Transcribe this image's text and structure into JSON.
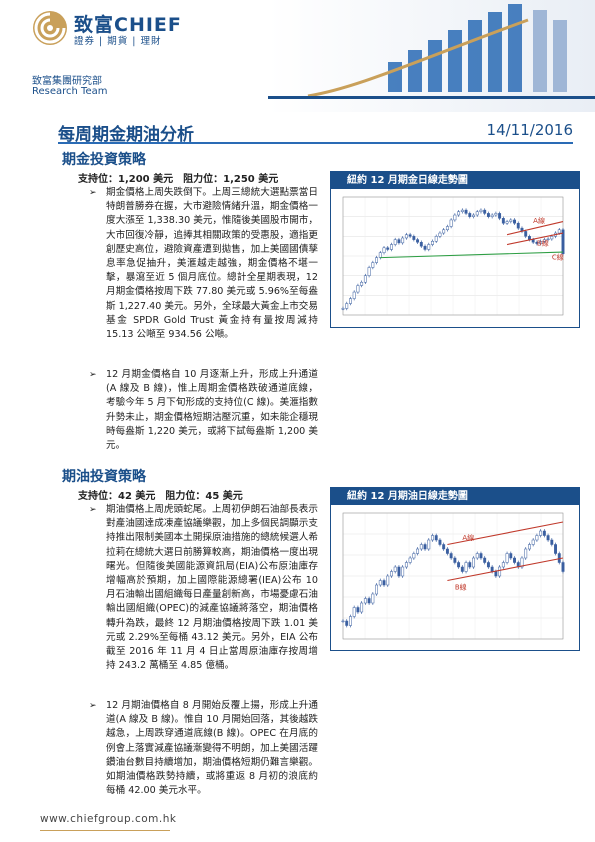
{
  "header": {
    "brand_name": "致富CHIEF",
    "brand_tagline": "證券 | 期貨 | 理財",
    "dept_cn": "致富集團研究部",
    "dept_en": "Research Team",
    "accent": "#1b4f8a",
    "gold": "#c9a05a"
  },
  "report": {
    "title": "每周期金期油分析",
    "date": "14/11/2016"
  },
  "gold_section": {
    "heading": "期金投資策略",
    "support_resistance": "支持位：1,200 美元　阻力位：1,250 美元",
    "bullets": [
      "期金價格上周失跌倒下。上周三總統大選點票當日特朗普勝券在握，大市避險情緒升溫，期金價格一度大漲至 1,338.30 美元，惟隨後美國股市開市，大市回復冷靜，追捧其相關政策的受惠股，適指更創歷史高位，避險資產遭到拋售，加上美國國債孳息率急促抽升，美滙越走越強，期金價格不堪一擊，暴瀉至近 5 個月底位。總計全星期表現，12 月期金價格按周下跌 77.80 美元或 5.96%至每盎斯 1,227.40 美元。另外，全球最大黃金上市交易基金 SPDR Gold Trust 黃金持有量按周減持 15.13 公噸至 934.56 公噸。",
      "12 月期金價格自 10 月逐漸上升，形成上升通道(A 線及 B 線)，惟上周期金價格跌破通道底線，考驗今年 5 月下旬形成的支持位(C 線)。美滙指數升勢未止，期金價格短期沽壓沉重，如未能企穩現時每盎斯 1,220 美元，或將下試每盎斯 1,200 美元。"
    ],
    "chart_title": "紐約 12 月期金日線走勢圖"
  },
  "oil_section": {
    "heading": "期油投資策略",
    "support_resistance": "支持位：42 美元　阻力位：45 美元",
    "bullets": [
      "期油價格上周虎頭蛇尾。上周初伊朗石油部長表示對產油國達成凍產協議樂觀，加上多個民調顯示支持推出限制美國本土開採原油措施的總統候選人希拉莉在總統大選日前勝算較高，期油價格一度出現曙光。但隨後美國能源資訊局(EIA)公布原油庫存增幅高於預期，加上國際能源總署(IEA)公布 10 月石油輸出國組織每日產量創新高，市場憂慮石油輸出國組織(OPEC)的減產協議將落空，期油價格轉升為跌，最終 12 月期油價格按周下跌 1.01 美元或 2.29%至每桶 43.12 美元。另外，EIA 公布截至 2016 年 11 月 4 日止當周原油庫存按周增持 243.2 萬桶至 4.85 億桶。",
      "12 月期油價格自 8 月開始反覆上揚，形成上升通道(A 線及 B 線)。惟自 10 月開始回落，其後越跌越急，上周跌穿通道底線(B 線)。OPEC 在月底的例會上落實減產協議漸變得不明朗，加上美國活躍鑽油台數目持續增加，期油價格短期仍難言樂觀。如期油價格跌勢持續，或將重返 8 月初的浪底約每桶 42.00 美元水平。"
    ],
    "chart_title": "紐約 12 月期油日線走勢圖"
  },
  "footer": {
    "url": "www.chiefgroup.com.hk"
  },
  "chart_data": [
    {
      "type": "line",
      "title": "紐約 12 月期金日線走勢圖",
      "x": [
        0,
        1,
        2,
        3,
        4,
        5,
        6,
        7,
        8,
        9,
        10,
        11,
        12,
        13,
        14,
        15,
        16,
        17,
        18,
        19,
        20,
        21,
        22,
        23,
        24,
        25,
        26,
        27,
        28,
        29,
        30,
        31,
        32,
        33,
        34,
        35,
        36,
        37,
        38,
        39,
        40,
        41,
        42,
        43,
        44,
        45,
        46,
        47,
        48,
        49,
        50,
        51,
        52,
        53,
        54,
        55,
        56,
        57,
        58,
        59
      ],
      "values": [
        1060,
        1075,
        1090,
        1110,
        1130,
        1140,
        1160,
        1185,
        1200,
        1215,
        1230,
        1245,
        1240,
        1255,
        1270,
        1260,
        1275,
        1285,
        1280,
        1270,
        1262,
        1250,
        1240,
        1255,
        1265,
        1280,
        1290,
        1300,
        1310,
        1330,
        1345,
        1355,
        1360,
        1350,
        1340,
        1345,
        1355,
        1360,
        1350,
        1340,
        1345,
        1350,
        1335,
        1320,
        1325,
        1330,
        1320,
        1305,
        1295,
        1280,
        1270,
        1262,
        1258,
        1265,
        1270,
        1272,
        1280,
        1290,
        1300,
        1227
      ],
      "annotations": [
        "A線",
        "B線",
        "C線"
      ],
      "ylim": [
        1040,
        1400
      ]
    },
    {
      "type": "line",
      "title": "紐約 12 月期油日線走勢圖",
      "x": [
        0,
        1,
        2,
        3,
        4,
        5,
        6,
        7,
        8,
        9,
        10,
        11,
        12,
        13,
        14,
        15,
        16,
        17,
        18,
        19,
        20,
        21,
        22,
        23,
        24,
        25,
        26,
        27,
        28,
        29,
        30,
        31,
        32,
        33,
        34,
        35,
        36,
        37,
        38,
        39,
        40,
        41,
        42,
        43,
        44,
        45,
        46,
        47,
        48,
        49,
        50,
        51,
        52,
        53,
        54,
        55,
        56,
        57,
        58,
        59
      ],
      "values": [
        32,
        31,
        33,
        35,
        34,
        36,
        37,
        36,
        38,
        40,
        41,
        40,
        42,
        43,
        44,
        42,
        44,
        45,
        46,
        47,
        48,
        49,
        48,
        50,
        51,
        50,
        49,
        48,
        47,
        46,
        45,
        44,
        43,
        45,
        44,
        46,
        47,
        46,
        45,
        44,
        43,
        42,
        44,
        45,
        47,
        46,
        45,
        44,
        46,
        48,
        49,
        50,
        51,
        52,
        51,
        50,
        49,
        47,
        45,
        43
      ],
      "annotations": [
        "A線",
        "B線"
      ],
      "ylim": [
        28,
        56
      ]
    }
  ]
}
